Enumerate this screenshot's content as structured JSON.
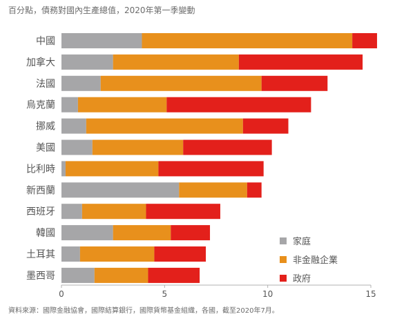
{
  "chart_data": {
    "type": "bar",
    "orientation": "horizontal",
    "stacked": true,
    "title": "",
    "subtitle": "百分點，債務對國內生產總值，2020年第一季變動",
    "source": "資料來源：國際金融協會，國際結算銀行，國際貨幣基金組織，各國，截至2020年7月。",
    "xlabel": "",
    "ylabel": "",
    "xlim": [
      0,
      15
    ],
    "xticks": [
      0,
      5,
      10,
      15
    ],
    "grid": false,
    "legend_position": "bottom-right",
    "categories": [
      "中國",
      "加拿大",
      "法國",
      "烏克蘭",
      "挪威",
      "美國",
      "比利時",
      "新西蘭",
      "西班牙",
      "韓國",
      "土耳其",
      "墨西哥"
    ],
    "series": [
      {
        "name": "家庭",
        "color": "#a6a6a8",
        "values": [
          3.9,
          2.5,
          1.9,
          0.8,
          1.2,
          1.5,
          0.2,
          5.7,
          1.0,
          2.5,
          0.9,
          1.6
        ]
      },
      {
        "name": "非金融企業",
        "color": "#e8901c",
        "values": [
          10.2,
          6.1,
          7.8,
          4.3,
          7.6,
          4.4,
          4.5,
          3.3,
          3.1,
          2.8,
          3.6,
          2.6
        ]
      },
      {
        "name": "政府",
        "color": "#e3201b",
        "values": [
          1.2,
          6.0,
          3.2,
          7.0,
          2.2,
          4.3,
          5.1,
          0.7,
          3.6,
          1.9,
          2.5,
          2.5
        ]
      }
    ]
  }
}
